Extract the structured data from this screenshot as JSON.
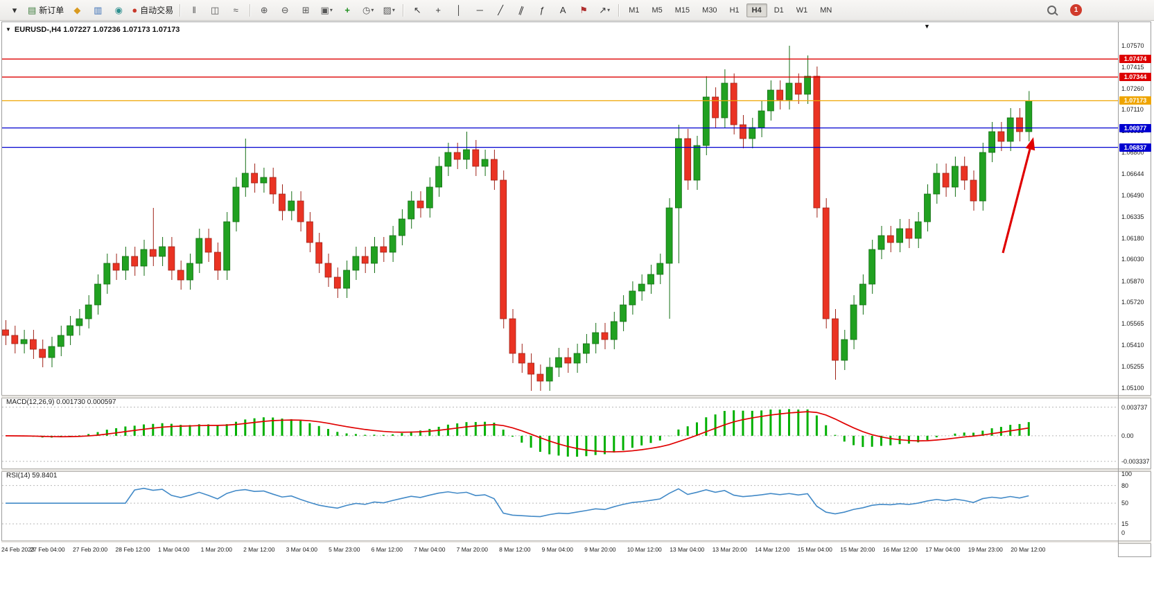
{
  "toolbar": {
    "new_order_label": "新订单",
    "auto_trading_label": "自动交易",
    "timeframes": [
      "M1",
      "M5",
      "M15",
      "M30",
      "H1",
      "H4",
      "D1",
      "W1",
      "MN"
    ],
    "active_timeframe": "H4",
    "notification_count": "1"
  },
  "icons": {
    "window-menu": {
      "g": "▾",
      "c": "#333333"
    },
    "new-order": {
      "g": "▤",
      "c": "#3f7d3f"
    },
    "chart-list": {
      "g": "◆",
      "c": "#d99a1f"
    },
    "market-watch": {
      "g": "▥",
      "c": "#3b6fb5"
    },
    "data-window": {
      "g": "◉",
      "c": "#2e8f8f"
    },
    "auto-trading": {
      "g": "●",
      "c": "#c8392b"
    },
    "bar-chart": {
      "g": "‖",
      "c": "#555555"
    },
    "candle-chart": {
      "g": "◫",
      "c": "#555555"
    },
    "line-chart": {
      "g": "≈",
      "c": "#555555"
    },
    "zoom-in": {
      "g": "⊕",
      "c": "#555555"
    },
    "zoom-out": {
      "g": "⊖",
      "c": "#555555"
    },
    "tile-windows": {
      "g": "⊞",
      "c": "#555555"
    },
    "new-chart": {
      "g": "▣",
      "c": "#555555"
    },
    "add-indicator": {
      "g": "+",
      "c": "#1f8f1f"
    },
    "periods": {
      "g": "◷",
      "c": "#555555"
    },
    "templates": {
      "g": "▨",
      "c": "#555555"
    },
    "cursor": {
      "g": "↖",
      "c": "#333333"
    },
    "crosshair": {
      "g": "+",
      "c": "#333333"
    },
    "vertical-line": {
      "g": "│",
      "c": "#333333"
    },
    "horizontal-line": {
      "g": "─",
      "c": "#333333"
    },
    "trend-line": {
      "g": "╱",
      "c": "#333333"
    },
    "channel": {
      "g": "∥",
      "c": "#333333"
    },
    "fibonacci": {
      "g": "ƒ",
      "c": "#333333"
    },
    "text": {
      "g": "A",
      "c": "#333333"
    },
    "text-label": {
      "g": "⚑",
      "c": "#b03030"
    },
    "arrow-tool": {
      "g": "↗",
      "c": "#333333"
    },
    "dropdown": {
      "g": "▾",
      "c": "#555555"
    },
    "marker-down": {
      "g": "▼",
      "c": "#111111"
    }
  },
  "chart_data": {
    "type": "candlestick",
    "title": "EURUSD-,H4 1.07227 1.07236 1.07173 1.07173",
    "symbol": "EURUSD-",
    "timeframe": "H4",
    "colors": {
      "up": "#21a121",
      "up_border": "#136e13",
      "down": "#ea3323",
      "down_border": "#9e2217",
      "macd_hist": "#00b000",
      "macd_signal": "#e00000",
      "rsi": "#4189c7",
      "arrow": "#e00000"
    },
    "price_range": [
      1.0508,
      1.0772
    ],
    "first_open": 1.0552,
    "default_wick": 0.0007,
    "closes": [
      1.0548,
      1.0542,
      1.0545,
      1.0538,
      1.0532,
      1.054,
      1.0548,
      1.0555,
      1.056,
      1.057,
      1.0585,
      1.06,
      1.0595,
      1.0605,
      1.0598,
      1.061,
      1.0605,
      1.0612,
      1.0595,
      1.0588,
      1.06,
      1.0618,
      1.0608,
      1.0595,
      1.063,
      1.0655,
      1.0665,
      1.0658,
      1.0662,
      1.065,
      1.0638,
      1.0645,
      1.063,
      1.0615,
      1.06,
      1.059,
      1.0582,
      1.0595,
      1.0605,
      1.06,
      1.0612,
      1.0608,
      1.062,
      1.0632,
      1.0645,
      1.064,
      1.0655,
      1.067,
      1.068,
      1.0675,
      1.0682,
      1.067,
      1.0675,
      1.066,
      1.056,
      1.0535,
      1.0528,
      1.052,
      1.0515,
      1.0525,
      1.0532,
      1.0528,
      1.0535,
      1.0542,
      1.055,
      1.0545,
      1.0558,
      1.057,
      1.058,
      1.0585,
      1.0592,
      1.06,
      1.064,
      1.069,
      1.066,
      1.0685,
      1.072,
      1.0705,
      1.073,
      1.07,
      1.069,
      1.0698,
      1.071,
      1.0725,
      1.0718,
      1.073,
      1.0722,
      1.0735,
      1.064,
      1.056,
      1.053,
      1.0545,
      1.057,
      1.0585,
      1.061,
      1.062,
      1.0615,
      1.0625,
      1.0618,
      1.063,
      1.065,
      1.0665,
      1.0655,
      1.067,
      1.066,
      1.0645,
      1.068,
      1.0695,
      1.0688,
      1.0705,
      1.0695,
      1.07173
    ],
    "high_wicks": {
      "16": 1.064,
      "26": 1.069,
      "50": 1.0695,
      "73": 1.07,
      "76": 1.0735,
      "78": 1.074,
      "85": 1.0757,
      "87": 1.075
    },
    "low_wicks": {
      "4": 1.0525,
      "36": 1.0575,
      "57": 1.0508,
      "72": 1.056,
      "73": 1.06,
      "90": 1.0516
    },
    "price_ticks": [
      "1.07570",
      "1.07415",
      "1.07260",
      "1.07110",
      "1.06955",
      "1.06800",
      "1.06644",
      "1.06490",
      "1.06335",
      "1.06180",
      "1.06030",
      "1.05870",
      "1.05720",
      "1.05565",
      "1.05410",
      "1.05255",
      "1.05100"
    ],
    "hlines": [
      {
        "price": 1.07474,
        "label": "1.07474",
        "color": "#dd0000"
      },
      {
        "price": 1.07344,
        "label": "1.07344",
        "color": "#dd0000"
      },
      {
        "price": 1.07173,
        "label": "1.07173",
        "color": "#efa500"
      },
      {
        "price": 1.06977,
        "label": "1.06977",
        "color": "#0000d0"
      },
      {
        "price": 1.06837,
        "label": "1.06837",
        "color": "#0000d0"
      }
    ],
    "current_price": "1.07173",
    "indicators": {
      "macd": {
        "label": "MACD(12,26,9) 0.001730 0.000597",
        "fast": 12,
        "slow": 26,
        "signal": 9,
        "axis_ticks": [
          "0.003737",
          "0.00",
          "-0.003337"
        ]
      },
      "rsi": {
        "label": "RSI(14) 59.8401",
        "period": 14,
        "axis_ticks": [
          "100",
          "80",
          "50",
          "15",
          "0"
        ],
        "levels": [
          80,
          50,
          15
        ]
      }
    },
    "time_labels": [
      "24 Feb 2023",
      "27 Feb 04:00",
      "27 Feb 20:00",
      "28 Feb 12:00",
      "1 Mar 04:00",
      "1 Mar 20:00",
      "2 Mar 12:00",
      "3 Mar 04:00",
      "5 Mar 23:00",
      "6 Mar 12:00",
      "7 Mar 04:00",
      "7 Mar 20:00",
      "8 Mar 12:00",
      "9 Mar 04:00",
      "9 Mar 20:00",
      "10 Mar 12:00",
      "13 Mar 04:00",
      "13 Mar 20:00",
      "14 Mar 12:00",
      "15 Mar 04:00",
      "15 Mar 20:00",
      "16 Mar 12:00",
      "17 Mar 04:00",
      "19 Mar 23:00",
      "20 Mar 12:00"
    ]
  }
}
